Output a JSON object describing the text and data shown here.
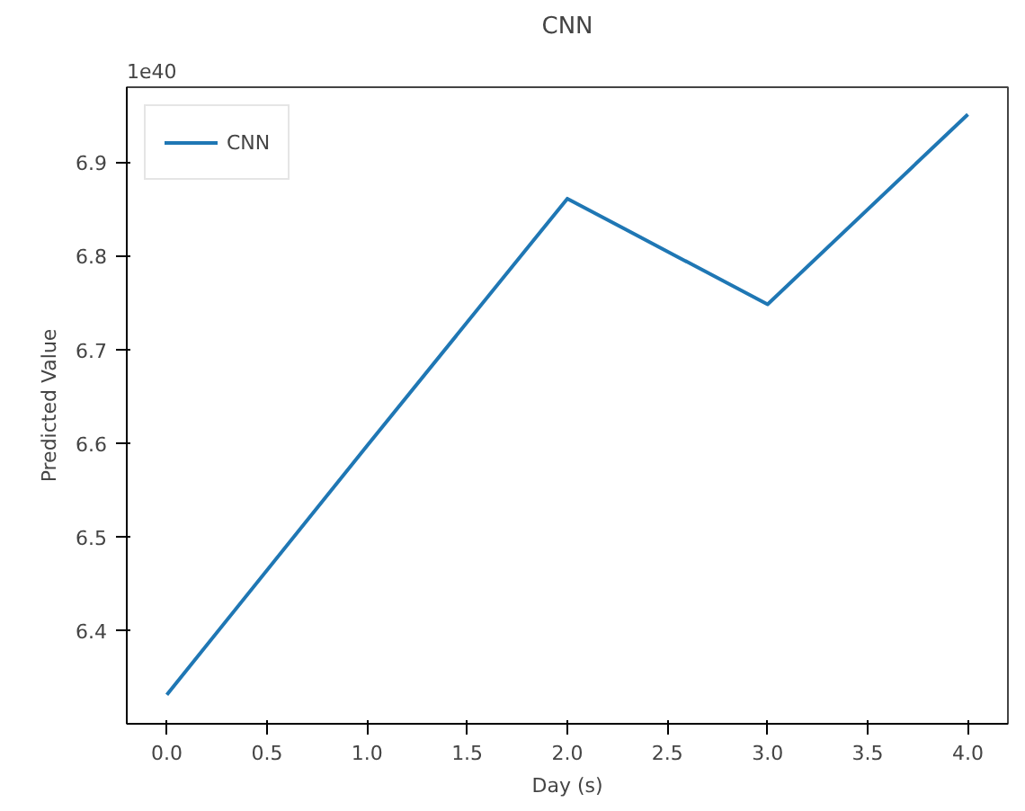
{
  "chart_data": {
    "type": "line",
    "title": "CNN",
    "xlabel": "Day (s)",
    "ylabel": "Predicted Value",
    "annotations": [
      "1e40"
    ],
    "x": [
      0,
      1,
      2,
      3,
      4
    ],
    "series": [
      {
        "name": "CNN",
        "color": "#1f77b4",
        "values": [
          6.331,
          6.597,
          6.861,
          6.748,
          6.951
        ]
      }
    ],
    "xlim": [
      -0.2,
      4.2
    ],
    "ylim": [
      6.3,
      6.98
    ],
    "xticks": [
      {
        "value": 0,
        "label": "0.0"
      },
      {
        "value": 0.5,
        "label": "0.5"
      },
      {
        "value": 1,
        "label": "1.0"
      },
      {
        "value": 1.5,
        "label": "1.5"
      },
      {
        "value": 2,
        "label": "2.0"
      },
      {
        "value": 2.5,
        "label": "2.5"
      },
      {
        "value": 3,
        "label": "3.0"
      },
      {
        "value": 3.5,
        "label": "3.5"
      },
      {
        "value": 4,
        "label": "4.0"
      }
    ],
    "yticks": [
      6.4,
      6.5,
      6.6,
      6.7,
      6.8,
      6.9
    ],
    "grid": false,
    "legend": "top left",
    "marker": "none",
    "line_style": "solid"
  }
}
